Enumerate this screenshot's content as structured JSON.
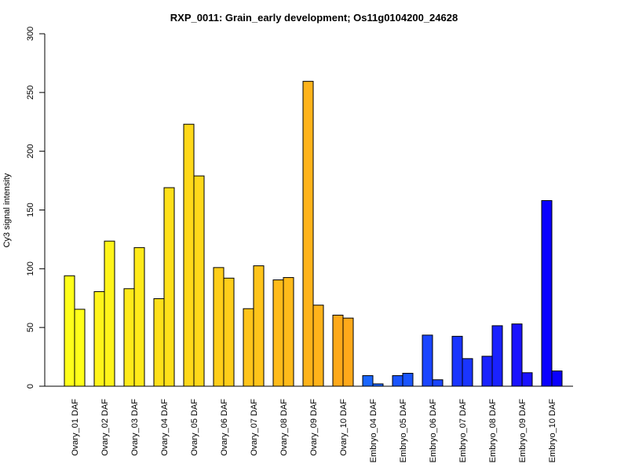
{
  "chart_data": {
    "type": "bar",
    "title": "RXP_0011: Grain_early development; Os11g0104200_24628",
    "xlabel": "",
    "ylabel": "Cy3 signal intensity",
    "ylim": [
      0,
      300
    ],
    "yticks": [
      0,
      50,
      100,
      150,
      200,
      250,
      300
    ],
    "grid": false,
    "categories": [
      "Ovary_01 DAF",
      "Ovary_02 DAF",
      "Ovary_03 DAF",
      "Ovary_04 DAF",
      "Ovary_05 DAF",
      "Ovary_06 DAF",
      "Ovary_07 DAF",
      "Ovary_08 DAF",
      "Ovary_09 DAF",
      "Ovary_10 DAF",
      "Embryo_04 DAF",
      "Embryo_05 DAF",
      "Embryo_06 DAF",
      "Embryo_07 DAF",
      "Embryo_08 DAF",
      "Embryo_09 DAF",
      "Embryo_10 DAF"
    ],
    "series": [
      {
        "values": [
          94,
          80.5,
          83,
          74.5,
          223,
          101,
          66,
          90.5,
          259.5,
          60.5,
          9,
          9,
          43.5,
          42.5,
          25.5,
          53,
          158
        ]
      },
      {
        "values": [
          65.5,
          123.5,
          118,
          169,
          179,
          92,
          102.5,
          92.5,
          69,
          58,
          2,
          11,
          5.5,
          23.5,
          51.5,
          11.5,
          13
        ]
      }
    ],
    "colors": [
      "#FFFF1A",
      "#FFF41A",
      "#FFEA1A",
      "#FFE01A",
      "#FFD81A",
      "#FFCE1A",
      "#FFC41A",
      "#FFBB1A",
      "#FFB31A",
      "#FFA91A",
      "#1A66FF",
      "#1A55FF",
      "#1A45FF",
      "#1A35FF",
      "#1A22FF",
      "#1A12FF",
      "#0A00FF"
    ]
  }
}
